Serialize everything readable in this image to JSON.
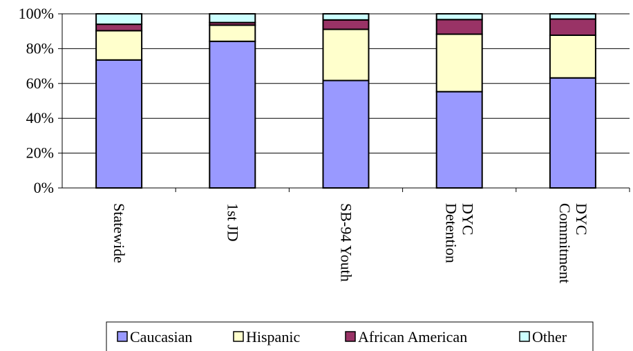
{
  "chart_data": {
    "type": "bar",
    "stacked": true,
    "percent": true,
    "categories": [
      [
        "Statewide"
      ],
      [
        "1st JD"
      ],
      [
        "SB-94 Youth"
      ],
      [
        "DYC",
        "Detention"
      ],
      [
        "DYC",
        "Commitment"
      ]
    ],
    "series": [
      {
        "name": "Caucasian",
        "color": "#9999FF",
        "values": [
          73.5,
          84.2,
          61.7,
          55.3,
          63.2
        ]
      },
      {
        "name": "Hispanic",
        "color": "#FFFFCC",
        "values": [
          16.8,
          9.3,
          29.4,
          33.0,
          24.5
        ]
      },
      {
        "name": "African American",
        "color": "#993366",
        "values": [
          3.7,
          1.5,
          5.4,
          8.4,
          9.3
        ]
      },
      {
        "name": "Other",
        "color": "#CCFFFF",
        "values": [
          6.0,
          5.0,
          3.5,
          3.3,
          3.0
        ]
      }
    ],
    "yticks": [
      "0%",
      "20%",
      "40%",
      "60%",
      "80%",
      "100%"
    ],
    "ylim": [
      0,
      100
    ],
    "grid": true,
    "legend_position": "bottom",
    "title": "",
    "xlabel": "",
    "ylabel": ""
  }
}
